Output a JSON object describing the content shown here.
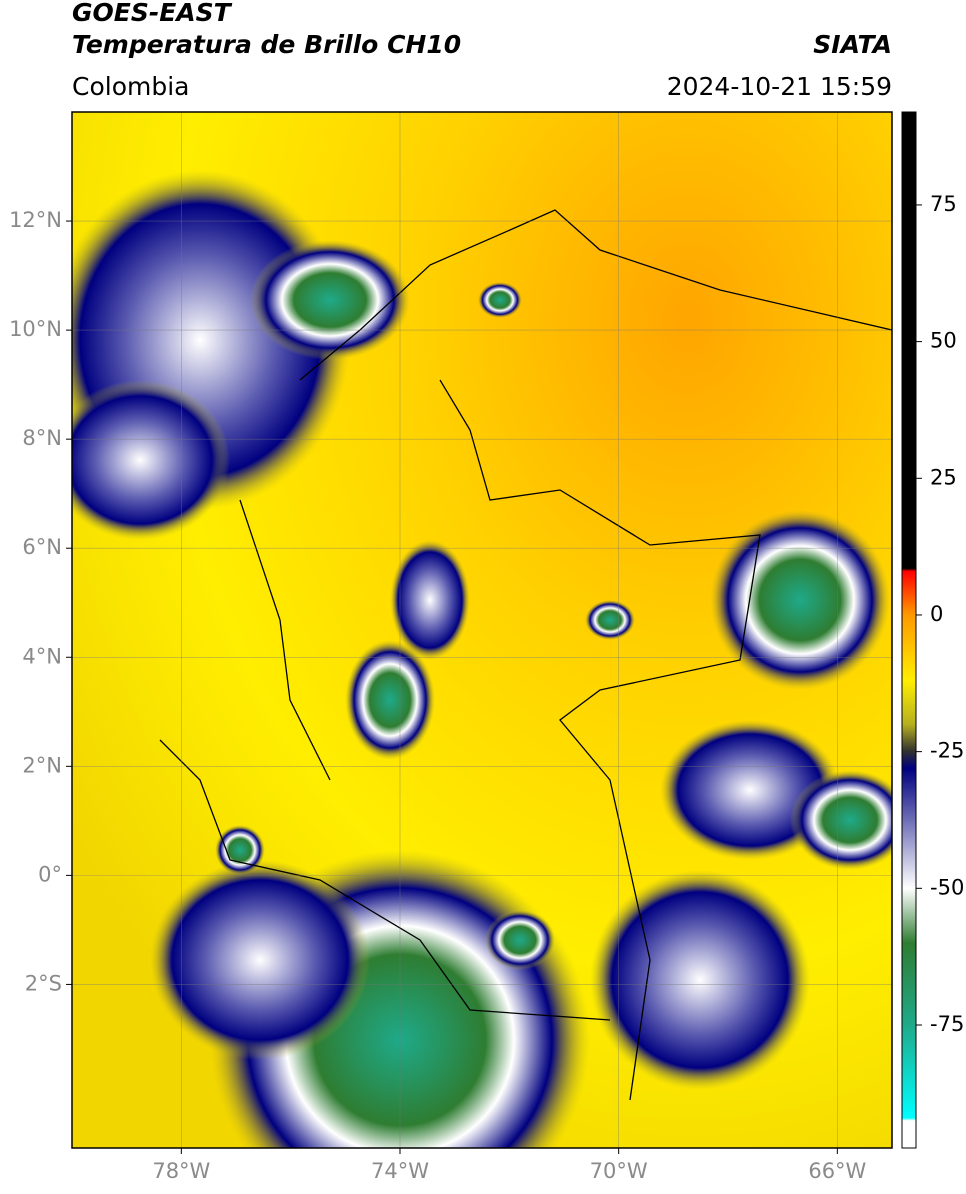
{
  "header": {
    "title": "GOES-EAST",
    "subtitle": "Temperatura de Brillo CH10",
    "source": "SIATA",
    "region": "Colombia",
    "datetime": "2024-10-21 15:59"
  },
  "map": {
    "lon_lim": [
      -80,
      -65
    ],
    "lat_lim": [
      -5,
      14
    ],
    "grid": true,
    "lon_ticks": [
      {
        "value": -78,
        "label": "78°W"
      },
      {
        "value": -74,
        "label": "74°W"
      },
      {
        "value": -70,
        "label": "70°W"
      },
      {
        "value": -66,
        "label": "66°W"
      }
    ],
    "lat_ticks": [
      {
        "value": 12,
        "label": "12°N"
      },
      {
        "value": 10,
        "label": "10°N"
      },
      {
        "value": 8,
        "label": "8°N"
      },
      {
        "value": 6,
        "label": "6°N"
      },
      {
        "value": 4,
        "label": "4°N"
      },
      {
        "value": 2,
        "label": "2°N"
      },
      {
        "value": 0,
        "label": "0°"
      },
      {
        "value": -2,
        "label": "2°S"
      }
    ]
  },
  "colorbar": {
    "lim": [
      -97.5,
      92
    ],
    "ticks": [
      75,
      50,
      25,
      0,
      -25,
      -50,
      -75
    ],
    "stops": [
      {
        "value": 92,
        "color": "#000000"
      },
      {
        "value": 8.5,
        "color": "#000000"
      },
      {
        "value": 8,
        "color": "#ff0000"
      },
      {
        "value": 0,
        "color": "#ff9900"
      },
      {
        "value": -12,
        "color": "#ffee00"
      },
      {
        "value": -20,
        "color": "#b5b020"
      },
      {
        "value": -25,
        "color": "#303030"
      },
      {
        "value": -28,
        "color": "#000080"
      },
      {
        "value": -50,
        "color": "#ffffff"
      },
      {
        "value": -60,
        "color": "#2e7d32"
      },
      {
        "value": -75,
        "color": "#1faa8a"
      },
      {
        "value": -92,
        "color": "#00ffff"
      },
      {
        "value": -92.5,
        "color": "#ffffff"
      },
      {
        "value": -97.5,
        "color": "#ffffff"
      }
    ]
  }
}
